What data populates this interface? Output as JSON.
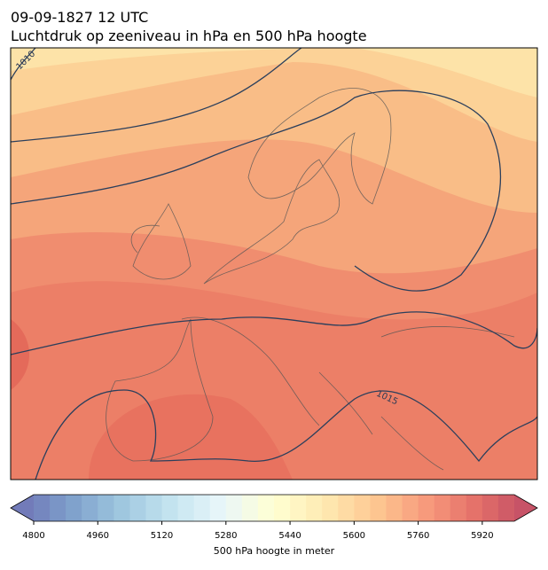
{
  "header": {
    "title": "09-09-1827 12 UTC",
    "subtitle": "Luchtdruk op zeeniveau in hPa en 500 hPa hoogte"
  },
  "map": {
    "contour_labels": [
      "1010",
      "1015"
    ]
  },
  "colorbar": {
    "label": "500 hPa hoogte in meter",
    "range": [
      4800,
      6000
    ],
    "step": 40,
    "ticks": [
      4800,
      4960,
      5120,
      5280,
      5440,
      5600,
      5760,
      5920
    ]
  }
}
